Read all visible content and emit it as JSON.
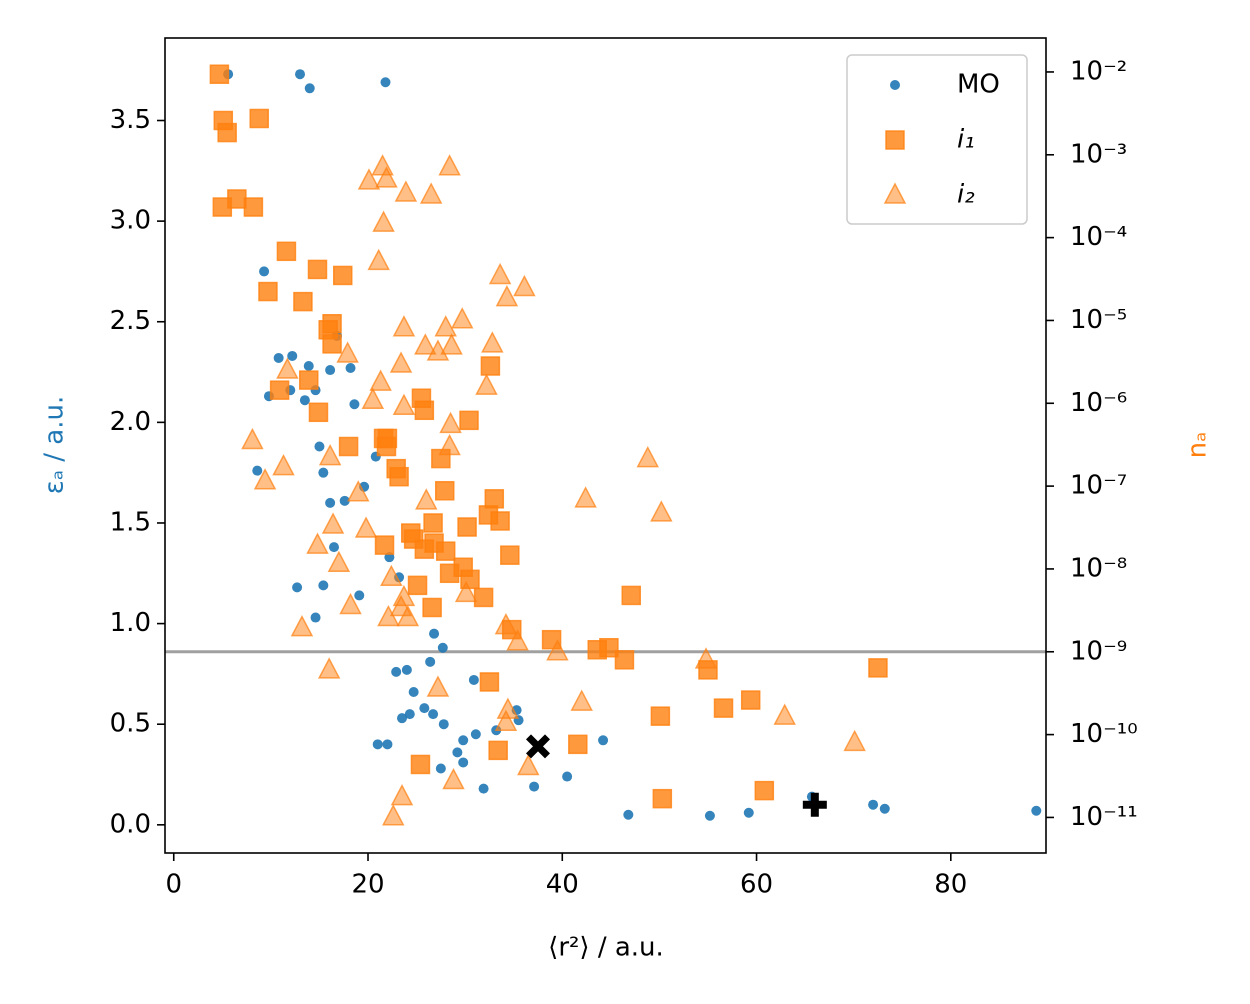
{
  "chart_data": {
    "type": "scatter",
    "x_label": "⟨r²⟩ / a.u.",
    "y_label": "εₐ / a.u.",
    "y_label_color": "#1f77b4",
    "y2_label": "nₐ",
    "y2_label_color": "#ff7f0e",
    "xlim": [
      -0.9,
      89.8
    ],
    "xticks": [
      0,
      20,
      40,
      60,
      80
    ],
    "ylim": [
      -0.14,
      3.91
    ],
    "yticks": [
      {
        "value": 0,
        "label": "0.0"
      },
      0.5,
      {
        "value": 1,
        "label": "1.0"
      },
      1.5,
      {
        "value": 2,
        "label": "2.0"
      },
      2.5,
      {
        "value": 3,
        "label": "3.0"
      },
      3.5
    ],
    "y2_scale": "log",
    "y2lim": [
      3.72e-12,
      0.0257
    ],
    "y2ticks": [
      {
        "value": 0.01,
        "label": "10⁻²"
      },
      {
        "value": 0.001,
        "label": "10⁻³"
      },
      {
        "value": 0.0001,
        "label": "10⁻⁴"
      },
      {
        "value": 1e-05,
        "label": "10⁻⁵"
      },
      {
        "value": 1e-06,
        "label": "10⁻⁶"
      },
      {
        "value": 1e-07,
        "label": "10⁻⁷"
      },
      {
        "value": 1e-08,
        "label": "10⁻⁸"
      },
      {
        "value": 1e-09,
        "label": "10⁻⁹"
      },
      {
        "value": 1e-10,
        "label": "10⁻¹⁰"
      },
      {
        "value": 1e-11,
        "label": "10⁻¹¹"
      }
    ],
    "threshold": {
      "value": 1e-09,
      "axis": "y2",
      "color": "#a0a0a0"
    },
    "legend": "upper right",
    "series": [
      {
        "name": "MO",
        "color": "#1f77b4",
        "marker": "circle",
        "opacity": 0.9,
        "x": [
          5.6,
          13.0,
          14.0,
          21.8,
          9.3,
          10.8,
          12.2,
          9.8,
          12.0,
          13.5,
          13.9,
          14.6,
          16.1,
          16.8,
          18.2,
          18.6,
          15.0,
          8.6,
          15.4,
          16.1,
          17.6,
          19.6,
          20.8,
          16.5,
          22.2,
          23.2,
          12.7,
          15.4,
          19.1,
          14.6,
          26.8,
          27.7,
          26.4,
          22.9,
          24.0,
          30.9,
          24.7,
          23.5,
          24.3,
          25.8,
          26.7,
          27.8,
          35.3,
          35.5,
          33.2,
          31.1,
          29.8,
          21.0,
          22.0,
          29.2,
          29.8,
          27.5,
          31.9,
          37.1,
          40.5,
          44.2,
          46.8,
          55.2,
          59.2,
          65.7,
          66.1,
          72.0,
          73.2,
          88.8
        ],
        "values": [
          3.73,
          3.73,
          3.66,
          3.69,
          2.75,
          2.32,
          2.33,
          2.13,
          2.16,
          2.11,
          2.28,
          2.16,
          2.26,
          2.43,
          2.27,
          2.09,
          1.88,
          1.76,
          1.75,
          1.6,
          1.61,
          1.68,
          1.83,
          1.38,
          1.33,
          1.23,
          1.18,
          1.19,
          1.14,
          1.03,
          0.95,
          0.88,
          0.81,
          0.76,
          0.77,
          0.72,
          0.66,
          0.53,
          0.55,
          0.58,
          0.55,
          0.5,
          0.57,
          0.52,
          0.47,
          0.45,
          0.42,
          0.4,
          0.4,
          0.36,
          0.31,
          0.28,
          0.18,
          0.19,
          0.24,
          0.42,
          0.05,
          0.045,
          0.06,
          0.14,
          0.1,
          0.1,
          0.08,
          0.07
        ]
      },
      {
        "name": "i₁",
        "color": "#ff7f0e",
        "marker": "square",
        "opacity": 0.8,
        "x": [
          4.7,
          5.1,
          5.5,
          8.8,
          5.0,
          6.5,
          8.2,
          11.6,
          9.7,
          13.3,
          14.8,
          17.4,
          15.9,
          16.3,
          16.3,
          13.9,
          10.9,
          14.9,
          18.0,
          22.0,
          21.9,
          21.6,
          22.9,
          23.2,
          25.5,
          25.8,
          30.4,
          32.6,
          27.5,
          27.9,
          21.7,
          24.4,
          24.7,
          25.8,
          26.7,
          28.0,
          26.8,
          30.2,
          33.0,
          32.4,
          33.6,
          34.6,
          28.4,
          29.8,
          30.5,
          31.9,
          25.1,
          26.6,
          47.1,
          34.8,
          38.9,
          43.6,
          44.8,
          46.4,
          55.0,
          72.5,
          32.5,
          50.1,
          56.6,
          59.4,
          33.4,
          41.6,
          25.4,
          50.3,
          60.8
        ],
        "values": [
          3.73,
          3.5,
          3.44,
          3.51,
          3.07,
          3.11,
          3.07,
          2.85,
          2.65,
          2.6,
          2.76,
          2.73,
          2.46,
          2.39,
          2.49,
          2.21,
          2.16,
          2.05,
          1.88,
          1.92,
          1.88,
          1.92,
          1.77,
          1.73,
          2.12,
          2.06,
          2.01,
          2.28,
          1.82,
          1.66,
          1.39,
          1.45,
          1.42,
          1.37,
          1.5,
          1.36,
          1.4,
          1.48,
          1.62,
          1.54,
          1.51,
          1.34,
          1.25,
          1.28,
          1.22,
          1.13,
          1.19,
          1.08,
          1.14,
          0.97,
          0.92,
          0.87,
          0.88,
          0.82,
          0.77,
          0.78,
          0.71,
          0.54,
          0.58,
          0.62,
          0.37,
          0.4,
          0.3,
          0.13,
          0.17
        ]
      },
      {
        "name": "i₂",
        "color": "#ff7f0e",
        "marker": "triangle",
        "opacity": 0.5,
        "x": [
          21.5,
          20.1,
          21.9,
          23.9,
          26.5,
          28.4,
          21.6,
          21.1,
          33.6,
          34.3,
          36.1,
          23.7,
          29.7,
          28.0,
          32.8,
          25.9,
          27.2,
          28.6,
          17.9,
          23.4,
          11.7,
          21.3,
          20.5,
          23.7,
          32.2,
          28.5,
          28.4,
          8.1,
          16.1,
          11.3,
          9.4,
          48.8,
          42.4,
          50.2,
          19.0,
          26.0,
          19.8,
          14.8,
          16.4,
          17.0,
          22.4,
          23.7,
          23.4,
          22.1,
          24.1,
          18.2,
          13.2,
          30.1,
          34.2,
          35.4,
          39.5,
          54.8,
          16.0,
          27.2,
          42.0,
          34.4,
          34.2,
          62.9,
          70.1,
          36.5,
          28.8,
          23.5,
          22.6
        ],
        "values": [
          3.27,
          3.2,
          3.21,
          3.14,
          3.13,
          3.27,
          2.99,
          2.8,
          2.73,
          2.62,
          2.67,
          2.47,
          2.51,
          2.47,
          2.39,
          2.38,
          2.35,
          2.38,
          2.34,
          2.29,
          2.26,
          2.2,
          2.11,
          2.08,
          2.18,
          1.99,
          1.88,
          1.91,
          1.83,
          1.78,
          1.71,
          1.82,
          1.62,
          1.55,
          1.65,
          1.61,
          1.47,
          1.39,
          1.49,
          1.3,
          1.23,
          1.13,
          1.08,
          1.03,
          1.03,
          1.09,
          0.98,
          1.15,
          0.99,
          0.91,
          0.86,
          0.82,
          0.77,
          0.68,
          0.61,
          0.57,
          0.51,
          0.54,
          0.41,
          0.29,
          0.22,
          0.14,
          0.04
        ]
      }
    ],
    "highlights": [
      {
        "x": 37.5,
        "y": 0.39,
        "marker": "X",
        "color": "#000000"
      },
      {
        "x": 66.0,
        "y": 0.1,
        "marker": "P",
        "color": "#000000"
      }
    ]
  }
}
